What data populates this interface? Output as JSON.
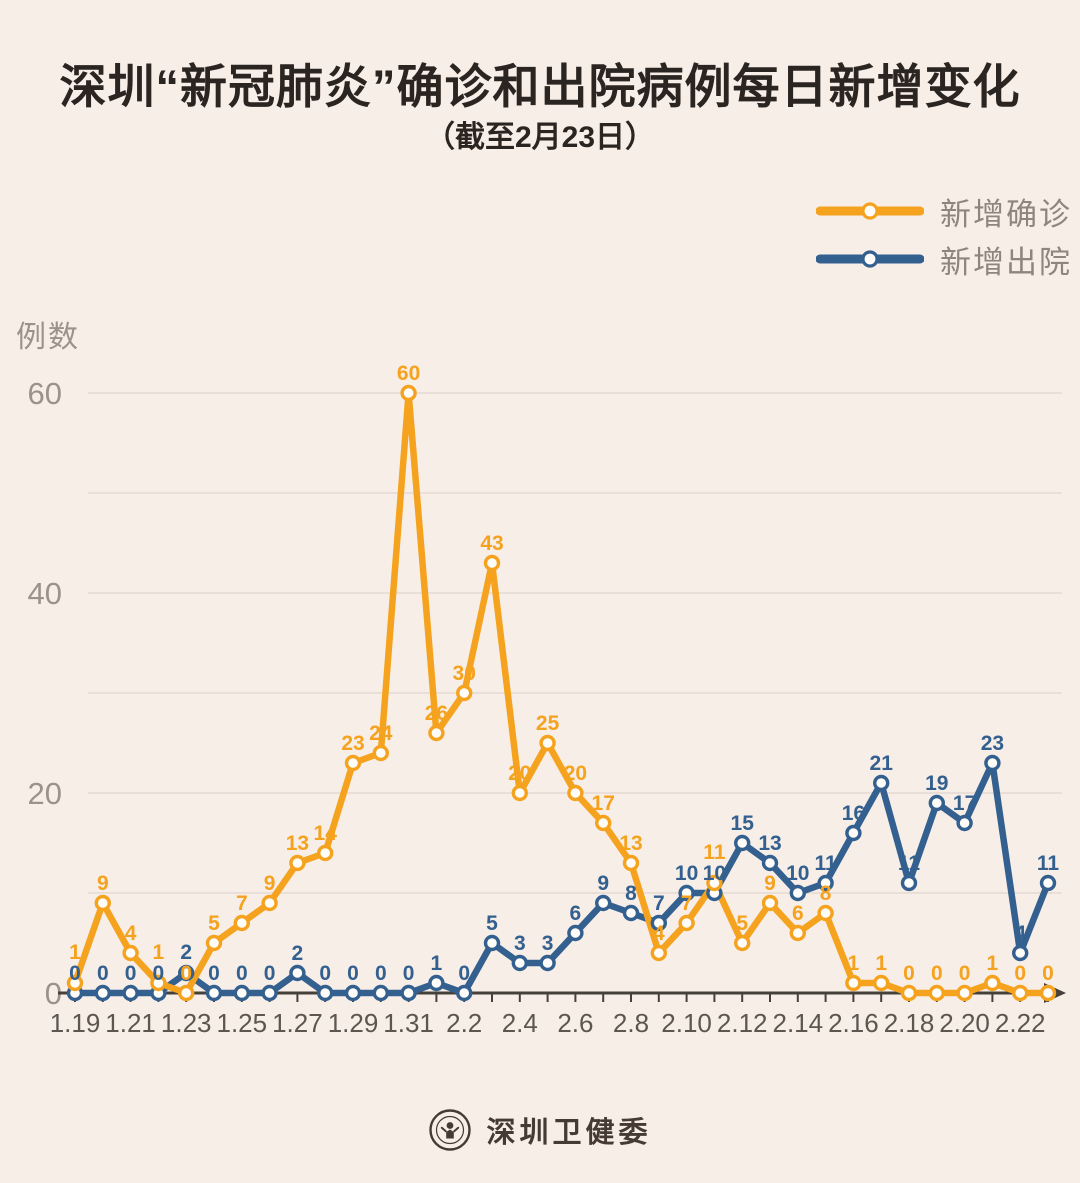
{
  "header": {
    "title": "深圳“新冠肺炎”确诊和出院病例每日新增变化",
    "subtitle": "（截至2月23日）"
  },
  "legend": {
    "items": [
      {
        "label": "新增确诊",
        "color": "#F5A31F"
      },
      {
        "label": "新增出院",
        "color": "#33608F"
      }
    ]
  },
  "y_axis": {
    "label": "例数",
    "ticks": [
      0,
      20,
      40,
      60
    ]
  },
  "footer": {
    "source": "深圳卫健委",
    "logo": "shenzhen-health-commission-seal"
  },
  "colors": {
    "background": "#F7EEE8",
    "confirmed": "#F5A31F",
    "discharged": "#33608F",
    "gridline": "#E5DAD2",
    "axis": "#45403A",
    "x_tick_label": "#5C564F",
    "y_tick_label": "#9C928B",
    "marker_fill": "#FFFDFA"
  },
  "chart_data": {
    "type": "line",
    "title": "深圳“新冠肺炎”确诊和出院病例每日新增变化",
    "subtitle": "（截至2月23日）",
    "xlabel": "",
    "ylabel": "例数",
    "categories": [
      "1.19",
      "1.20",
      "1.21",
      "1.22",
      "1.23",
      "1.24",
      "1.25",
      "1.26",
      "1.27",
      "1.28",
      "1.29",
      "1.30",
      "1.31",
      "2.1",
      "2.2",
      "2.3",
      "2.4",
      "2.5",
      "2.6",
      "2.7",
      "2.8",
      "2.9",
      "2.10",
      "2.11",
      "2.12",
      "2.13",
      "2.14",
      "2.15",
      "2.16",
      "2.17",
      "2.18",
      "2.19",
      "2.20",
      "2.21",
      "2.22",
      "2.23"
    ],
    "x_tick_labels": [
      "1.19",
      "1.21",
      "1.23",
      "1.25",
      "1.27",
      "1.29",
      "1.31",
      "2.2",
      "2.4",
      "2.6",
      "2.8",
      "2.10",
      "2.12",
      "2.14",
      "2.16",
      "2.18",
      "2.20",
      "2.22"
    ],
    "series": [
      {
        "name": "新增确诊",
        "color": "#F5A31F",
        "values": [
          1,
          9,
          4,
          1,
          0,
          5,
          7,
          9,
          13,
          14,
          23,
          24,
          60,
          26,
          30,
          43,
          20,
          25,
          20,
          17,
          13,
          4,
          7,
          11,
          5,
          9,
          6,
          8,
          1,
          1,
          0,
          0,
          0,
          1,
          0,
          0
        ]
      },
      {
        "name": "新增出院",
        "color": "#33608F",
        "values": [
          0,
          0,
          0,
          0,
          2,
          0,
          0,
          0,
          2,
          0,
          0,
          0,
          0,
          1,
          0,
          5,
          3,
          3,
          6,
          9,
          8,
          7,
          10,
          10,
          15,
          13,
          10,
          11,
          16,
          21,
          11,
          19,
          17,
          23,
          4,
          11
        ]
      }
    ],
    "ylim": [
      0,
      60
    ],
    "y_ticks": [
      0,
      20,
      40,
      60
    ],
    "gridlines": "horizontal every 10",
    "legend_position": "top-right",
    "data_labels": true
  }
}
